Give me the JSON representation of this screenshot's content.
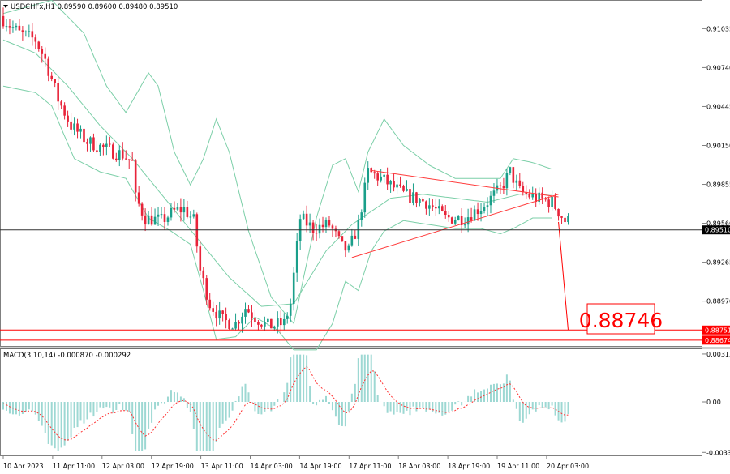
{
  "symbol_header": "USDCHFx,H1  0.89590 0.89600 0.89480 0.89510",
  "macd_header": "MACD(3,10,14) -0.000870 -0.000292",
  "colors": {
    "bull": "#1a9f8a",
    "bear": "#e8243a",
    "band": "#7ccfa8",
    "line": "#333333",
    "annotation": "#ff0000",
    "trendline": "#ff3b3b",
    "macd_hist": "#9dd8d3",
    "macd_signal": "#ff3333"
  },
  "annotation": {
    "price_label": "0.88746"
  },
  "chart_data": [
    {
      "type": "candlestick",
      "title": "USDCHFx,H1",
      "ylim": [
        0.8863,
        0.9124
      ],
      "y_ticks": [
        "0.91035",
        "0.90740",
        "0.90445",
        "0.90150",
        "0.89855",
        "0.89560",
        "0.89265",
        "0.88970"
      ],
      "x_ticks": [
        "10 Apr 2023",
        "11 Apr 11:00",
        "12 Apr 03:00",
        "12 Apr 19:00",
        "13 Apr 11:00",
        "14 Apr 03:00",
        "14 Apr 19:00",
        "17 Apr 11:00",
        "18 Apr 03:00",
        "18 Apr 19:00",
        "19 Apr 11:00",
        "20 Apr 03:00"
      ],
      "current_price": "0.89510",
      "horizontal_levels": [
        "0.88751",
        "0.88674"
      ],
      "path_anchors": [
        [
          0,
          0.9113
        ],
        [
          6,
          0.91
        ],
        [
          11,
          0.9095
        ],
        [
          14,
          0.908
        ],
        [
          18,
          0.905
        ],
        [
          22,
          0.903
        ],
        [
          27,
          0.9018
        ],
        [
          33,
          0.9012
        ],
        [
          38,
          0.9008
        ],
        [
          41,
          0.9002
        ],
        [
          42,
          0.8975
        ],
        [
          45,
          0.896
        ],
        [
          50,
          0.8958
        ],
        [
          54,
          0.8965
        ],
        [
          57,
          0.8967
        ],
        [
          60,
          0.8958
        ],
        [
          62,
          0.892
        ],
        [
          65,
          0.8895
        ],
        [
          69,
          0.8882
        ],
        [
          73,
          0.888
        ],
        [
          76,
          0.8892
        ],
        [
          79,
          0.8885
        ],
        [
          83,
          0.8878
        ],
        [
          88,
          0.888
        ],
        [
          90,
          0.8895
        ],
        [
          93,
          0.896
        ],
        [
          97,
          0.8952
        ],
        [
          102,
          0.8955
        ],
        [
          106,
          0.8938
        ],
        [
          108,
          0.8935
        ],
        [
          111,
          0.8955
        ],
        [
          114,
          0.8995
        ],
        [
          118,
          0.899
        ],
        [
          125,
          0.8978
        ],
        [
          132,
          0.8972
        ],
        [
          138,
          0.896
        ],
        [
          144,
          0.896
        ],
        [
          150,
          0.897
        ],
        [
          155,
          0.8982
        ],
        [
          158,
          0.8995
        ],
        [
          161,
          0.898
        ],
        [
          166,
          0.8975
        ],
        [
          171,
          0.8972
        ],
        [
          175,
          0.8958
        ]
      ],
      "bands": {
        "upper": [
          [
            0,
            0.9115
          ],
          [
            15,
            0.9125
          ],
          [
            25,
            0.91
          ],
          [
            32,
            0.906
          ],
          [
            38,
            0.904
          ],
          [
            45,
            0.907
          ],
          [
            48,
            0.906
          ],
          [
            53,
            0.901
          ],
          [
            58,
            0.8985
          ],
          [
            62,
            0.9005
          ],
          [
            66,
            0.9035
          ],
          [
            70,
            0.901
          ],
          [
            76,
            0.895
          ],
          [
            83,
            0.89
          ],
          [
            90,
            0.888
          ],
          [
            97,
            0.896
          ],
          [
            102,
            0.9
          ],
          [
            106,
            0.9005
          ],
          [
            110,
            0.898
          ],
          [
            113,
            0.901
          ],
          [
            118,
            0.9035
          ],
          [
            124,
            0.9015
          ],
          [
            132,
            0.9
          ],
          [
            140,
            0.899
          ],
          [
            148,
            0.899
          ],
          [
            154,
            0.899
          ],
          [
            158,
            0.9005
          ],
          [
            164,
            0.9002
          ],
          [
            170,
            0.8997
          ]
        ],
        "middle": [
          [
            0,
            0.9095
          ],
          [
            10,
            0.9085
          ],
          [
            20,
            0.906
          ],
          [
            30,
            0.903
          ],
          [
            40,
            0.9005
          ],
          [
            50,
            0.8975
          ],
          [
            60,
            0.8945
          ],
          [
            70,
            0.8915
          ],
          [
            80,
            0.8893
          ],
          [
            90,
            0.8895
          ],
          [
            100,
            0.8935
          ],
          [
            108,
            0.8955
          ],
          [
            114,
            0.8965
          ],
          [
            120,
            0.8975
          ],
          [
            130,
            0.8978
          ],
          [
            140,
            0.8975
          ],
          [
            150,
            0.8972
          ],
          [
            160,
            0.8978
          ],
          [
            170,
            0.8978
          ]
        ],
        "lower": [
          [
            0,
            0.906
          ],
          [
            10,
            0.9055
          ],
          [
            15,
            0.9045
          ],
          [
            22,
            0.9005
          ],
          [
            30,
            0.8995
          ],
          [
            38,
            0.899
          ],
          [
            45,
            0.896
          ],
          [
            52,
            0.895
          ],
          [
            58,
            0.894
          ],
          [
            62,
            0.8905
          ],
          [
            66,
            0.8868
          ],
          [
            72,
            0.887
          ],
          [
            78,
            0.8885
          ],
          [
            85,
            0.8875
          ],
          [
            90,
            0.886
          ],
          [
            97,
            0.886
          ],
          [
            102,
            0.888
          ],
          [
            106,
            0.8912
          ],
          [
            110,
            0.8905
          ],
          [
            114,
            0.8935
          ],
          [
            118,
            0.895
          ],
          [
            124,
            0.8958
          ],
          [
            132,
            0.8955
          ],
          [
            140,
            0.8952
          ],
          [
            148,
            0.8952
          ],
          [
            154,
            0.8948
          ],
          [
            158,
            0.8952
          ],
          [
            164,
            0.896
          ],
          [
            170,
            0.896
          ]
        ]
      },
      "trendlines": [
        {
          "from": [
            108,
            0.893
          ],
          "to": [
            172,
            0.8978
          ]
        },
        {
          "from": [
            114,
            0.8996
          ],
          "to": [
            172,
            0.8976
          ]
        }
      ],
      "projection": {
        "from": [
          172,
          0.8957
        ],
        "to": [
          175,
          0.8875
        ]
      }
    },
    {
      "type": "macd",
      "title": "MACD(3,10,14)",
      "ylim": [
        -0.0034,
        0.0034
      ],
      "y_ticks": [
        "0.003138",
        "0.00",
        "-0.003309"
      ],
      "last_values": {
        "macd": "-0.000870",
        "signal": "-0.000292"
      }
    }
  ]
}
